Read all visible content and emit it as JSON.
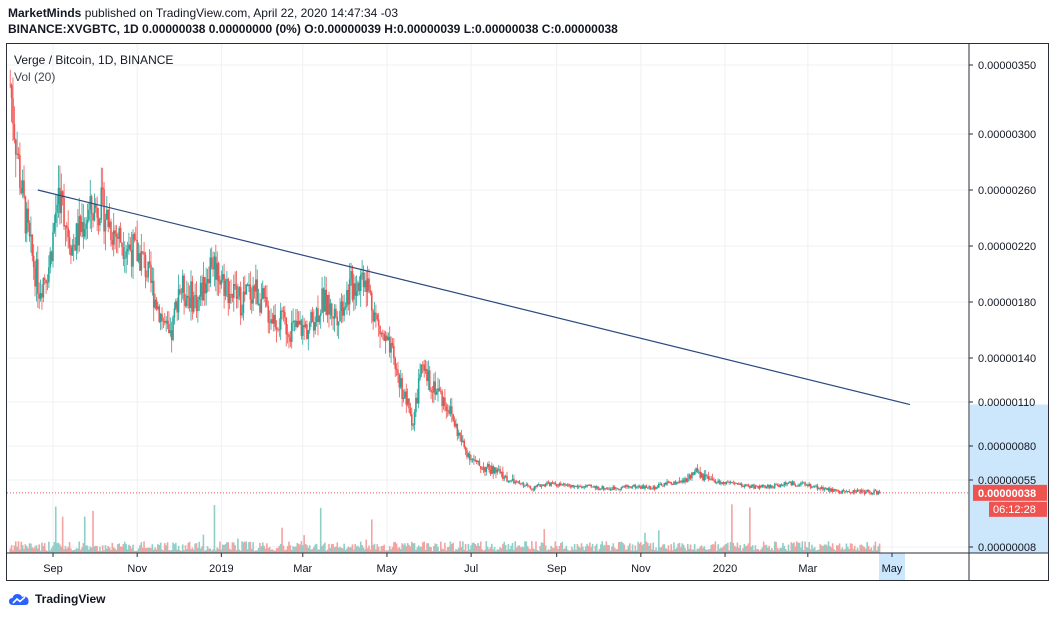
{
  "header": {
    "publisher": "MarketMinds",
    "published_text": "published on TradingView.com, April 22, 2020 14:47:34 -03",
    "symbol_line_bold": "BINANCE:XVGBTC, 1D",
    "symbol_line_rest": "0.00000038 0.00000000 (0%)",
    "o_label": "O:",
    "o_value": "0.00000039",
    "h_label": "H:",
    "h_value": "0.00000039",
    "l_label": "L:",
    "l_value": "0.00000038",
    "c_label": "C:",
    "c_value": "0.00000038"
  },
  "legend": {
    "title": "Verge / Bitcoin, 1D, BINANCE",
    "volume": "Vol (20)"
  },
  "footer": {
    "logo_text": "TradingView"
  },
  "colors": {
    "up": "#26a69a",
    "down": "#ef5350",
    "up_vol": "#8fcfc8",
    "down_vol": "#f2a4a2",
    "trendline": "#2a4a7f",
    "grid": "#eef0f3",
    "price_badge": "#ef5350",
    "axis_highlight": "#cce6fb"
  },
  "chart_data": {
    "type": "candlestick",
    "title": "Verge / Bitcoin, 1D, BINANCE",
    "x_ticks": [
      "Sep",
      "Nov",
      "2019",
      "Mar",
      "May",
      "Jul",
      "Sep",
      "Nov",
      "2020",
      "Mar",
      "May"
    ],
    "x_tick_dates": [
      "2018-09-01",
      "2018-11-01",
      "2019-01-01",
      "2019-03-01",
      "2019-05-01",
      "2019-07-01",
      "2019-09-01",
      "2019-11-01",
      "2020-01-01",
      "2020-03-01",
      "2020-05-01"
    ],
    "y_ticks": [
      "0.00000350",
      "0.00000300",
      "0.00000260",
      "0.00000220",
      "0.00000180",
      "0.00000140",
      "0.00000110",
      "0.00000080",
      "0.00000055",
      "0.00000008"
    ],
    "y_tick_values": [
      3.5e-06,
      3e-06,
      2.6e-06,
      2.2e-06,
      1.8e-06,
      1.4e-06,
      1.1e-06,
      8e-07,
      5.5e-07,
      8e-08
    ],
    "scale": "log",
    "current_price": "0.00000038",
    "countdown": "06:12:28",
    "price_path": [
      [
        "2018-08-01",
        3.35e-06
      ],
      [
        "2018-08-08",
        2.7e-06
      ],
      [
        "2018-08-15",
        2.2e-06
      ],
      [
        "2018-08-22",
        1.9e-06
      ],
      [
        "2018-08-29",
        2.05e-06
      ],
      [
        "2018-09-05",
        2.6e-06
      ],
      [
        "2018-09-15",
        2.2e-06
      ],
      [
        "2018-09-25",
        2.4e-06
      ],
      [
        "2018-10-05",
        2.5e-06
      ],
      [
        "2018-10-15",
        2.3e-06
      ],
      [
        "2018-10-25",
        2.2e-06
      ],
      [
        "2018-11-05",
        2.1e-06
      ],
      [
        "2018-11-15",
        1.8e-06
      ],
      [
        "2018-11-25",
        1.5e-06
      ],
      [
        "2018-12-01",
        1.9e-06
      ],
      [
        "2018-12-15",
        1.8e-06
      ],
      [
        "2018-12-25",
        2.1e-06
      ],
      [
        "2019-01-05",
        1.9e-06
      ],
      [
        "2019-01-15",
        1.8e-06
      ],
      [
        "2019-01-25",
        1.9e-06
      ],
      [
        "2019-02-05",
        1.7e-06
      ],
      [
        "2019-02-20",
        1.6e-06
      ],
      [
        "2019-03-05",
        1.6e-06
      ],
      [
        "2019-03-15",
        1.8e-06
      ],
      [
        "2019-03-25",
        1.7e-06
      ],
      [
        "2019-04-05",
        1.9e-06
      ],
      [
        "2019-04-15",
        2e-06
      ],
      [
        "2019-04-25",
        1.6e-06
      ],
      [
        "2019-05-05",
        1.4e-06
      ],
      [
        "2019-05-15",
        1.1e-06
      ],
      [
        "2019-05-20",
        9.5e-07
      ],
      [
        "2019-05-25",
        1.3e-06
      ],
      [
        "2019-06-05",
        1.2e-06
      ],
      [
        "2019-06-15",
        1.05e-06
      ],
      [
        "2019-06-25",
        8e-07
      ],
      [
        "2019-07-05",
        6.5e-07
      ],
      [
        "2019-07-20",
        6e-07
      ],
      [
        "2019-08-01",
        5.2e-07
      ],
      [
        "2019-08-15",
        4.4e-07
      ],
      [
        "2019-08-25",
        5e-07
      ],
      [
        "2019-09-10",
        4.6e-07
      ],
      [
        "2019-09-25",
        4.5e-07
      ],
      [
        "2019-10-10",
        4.3e-07
      ],
      [
        "2019-10-25",
        4.6e-07
      ],
      [
        "2019-11-10",
        4.4e-07
      ],
      [
        "2019-11-20",
        5e-07
      ],
      [
        "2019-12-01",
        5.2e-07
      ],
      [
        "2019-12-10",
        6e-07
      ],
      [
        "2019-12-25",
        5.2e-07
      ],
      [
        "2020-01-10",
        4.8e-07
      ],
      [
        "2020-01-25",
        4.5e-07
      ],
      [
        "2020-02-05",
        4.6e-07
      ],
      [
        "2020-02-15",
        5e-07
      ],
      [
        "2020-02-25",
        4.9e-07
      ],
      [
        "2020-03-05",
        4.6e-07
      ],
      [
        "2020-03-15",
        4.2e-07
      ],
      [
        "2020-03-25",
        3.9e-07
      ],
      [
        "2020-04-05",
        4e-07
      ],
      [
        "2020-04-22",
        3.8e-07
      ]
    ],
    "trendline": {
      "start": [
        "2018-08-21",
        2.6e-06
      ],
      "end": [
        "2020-05-14",
        1.08e-06
      ]
    }
  }
}
